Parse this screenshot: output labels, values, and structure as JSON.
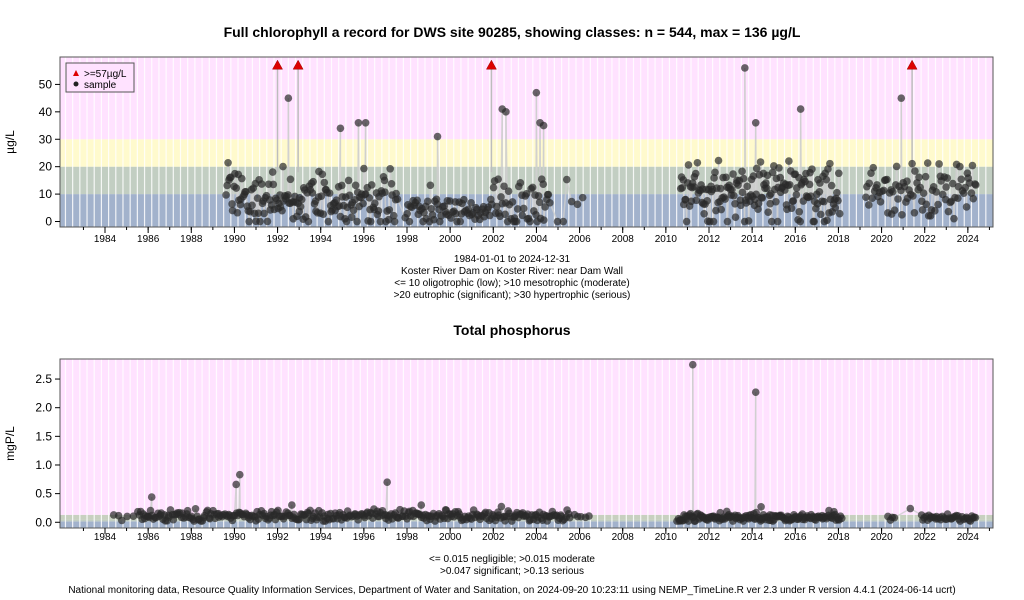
{
  "charts": [
    {
      "type": "scatter",
      "title": "Full chlorophyll a record for DWS site 90285, showing classes: n = 544, max = 136 µg/L",
      "ylabel": "µg/L",
      "xlim": [
        "1982-06-01",
        "2025-09-01"
      ],
      "ylim": [
        -2,
        60
      ],
      "x_ticks": [
        "1984",
        "1986",
        "1988",
        "1990",
        "1992",
        "1994",
        "1996",
        "1998",
        "2000",
        "2002",
        "2004",
        "2006",
        "2008",
        "2010",
        "2012",
        "2014",
        "2016",
        "2018",
        "2020",
        "2022",
        "2024"
      ],
      "y_ticks": [
        0,
        10,
        20,
        30,
        40,
        50
      ],
      "bands": [
        {
          "from": -2,
          "to": 10,
          "color": "#a2b2cc"
        },
        {
          "from": 10,
          "to": 20,
          "color": "#c2cec2"
        },
        {
          "from": 20,
          "to": 30,
          "color": "#fffacd"
        },
        {
          "from": 30,
          "to": 60,
          "color": "#ffe2ff"
        }
      ],
      "legend": {
        "placement": "top-left",
        "entries": [
          {
            "label": ">=57µg/L",
            "marker": "triangle",
            "color": "#dd0000"
          },
          {
            "label": "sample",
            "marker": "circle",
            "color": "#222222"
          }
        ]
      },
      "caption_lines": [
        "1984-01-01 to 2024-12-31",
        "Koster River Dam on Koster River: near Dam Wall",
        "<= 10 oligotrophic (low); >10 mesotrophic (moderate)",
        ">20 eutrophic (significant); >30 hypertrophic (serious)"
      ],
      "exceedances": [
        {
          "x": "1992-07-01",
          "y": 57
        },
        {
          "x": "1993-06-15",
          "y": 57
        },
        {
          "x": "2002-06-01",
          "y": 57
        },
        {
          "x": "2021-12-01",
          "y": 57
        }
      ],
      "highlights": [
        {
          "x": "1993-01-01",
          "y": 45
        },
        {
          "x": "1995-06-01",
          "y": 34
        },
        {
          "x": "1996-04-01",
          "y": 36
        },
        {
          "x": "1996-08-01",
          "y": 36
        },
        {
          "x": "1999-12-01",
          "y": 31
        },
        {
          "x": "2002-12-01",
          "y": 41
        },
        {
          "x": "2003-02-01",
          "y": 40
        },
        {
          "x": "2004-07-01",
          "y": 47
        },
        {
          "x": "2004-09-01",
          "y": 36
        },
        {
          "x": "2004-11-01",
          "y": 35
        },
        {
          "x": "2014-03-01",
          "y": 56
        },
        {
          "x": "2014-09-01",
          "y": 36
        },
        {
          "x": "2016-10-01",
          "y": 41
        },
        {
          "x": "2021-06-01",
          "y": 45
        }
      ],
      "segments": [
        {
          "from": "1990-02-01",
          "to": "1998-02-01",
          "mean": 8,
          "spread": 5,
          "count": 170,
          "lo": 0,
          "hi": 30
        },
        {
          "from": "1998-06-01",
          "to": "2002-06-01",
          "mean": 4,
          "spread": 3,
          "count": 70,
          "lo": 0,
          "hi": 22
        },
        {
          "from": "2002-06-01",
          "to": "2005-03-01",
          "mean": 6,
          "spread": 5,
          "count": 50,
          "lo": 0,
          "hi": 27
        },
        {
          "from": "2005-06-01",
          "to": "2006-10-01",
          "mean": 6,
          "spread": 7,
          "count": 6,
          "lo": 0,
          "hi": 26
        },
        {
          "from": "2011-03-01",
          "to": "2018-08-01",
          "mean": 10,
          "spread": 6,
          "count": 180,
          "lo": 0,
          "hi": 32
        },
        {
          "from": "2019-10-01",
          "to": "2024-12-01",
          "mean": 11,
          "spread": 5,
          "count": 90,
          "lo": 0,
          "hi": 28
        }
      ]
    },
    {
      "type": "scatter",
      "title": "Total phosphorus",
      "ylabel": "mgP/L",
      "xlim": [
        "1982-06-01",
        "2025-09-01"
      ],
      "ylim": [
        -0.1,
        2.85
      ],
      "x_ticks": [
        "1984",
        "1986",
        "1988",
        "1990",
        "1992",
        "1994",
        "1996",
        "1998",
        "2000",
        "2002",
        "2004",
        "2006",
        "2008",
        "2010",
        "2012",
        "2014",
        "2016",
        "2018",
        "2020",
        "2022",
        "2024"
      ],
      "y_ticks": [
        0.0,
        0.5,
        1.0,
        1.5,
        2.0,
        2.5
      ],
      "bands": [
        {
          "from": -0.1,
          "to": 0.015,
          "color": "#a2b2cc"
        },
        {
          "from": 0.015,
          "to": 0.047,
          "color": "#c2cec2"
        },
        {
          "from": 0.047,
          "to": 0.13,
          "color": "#c8d0c0"
        },
        {
          "from": 0.13,
          "to": 2.85,
          "color": "#ffe2ff"
        }
      ],
      "caption_lines": [
        "<= 0.015 negligible; >0.015 moderate",
        ">0.047 significant; >0.13 serious"
      ],
      "highlights": [
        {
          "x": "1986-09-01",
          "y": 0.44
        },
        {
          "x": "1990-08-01",
          "y": 0.66
        },
        {
          "x": "1990-10-01",
          "y": 0.83
        },
        {
          "x": "1993-03-01",
          "y": 0.3
        },
        {
          "x": "1997-08-01",
          "y": 0.7
        },
        {
          "x": "1999-03-01",
          "y": 0.3
        },
        {
          "x": "2011-10-01",
          "y": 2.75
        },
        {
          "x": "2014-09-01",
          "y": 2.27
        },
        {
          "x": "2014-12-01",
          "y": 0.27
        },
        {
          "x": "2021-11-01",
          "y": 0.24
        }
      ],
      "segments": [
        {
          "from": "1984-10-01",
          "to": "1986-01-01",
          "mean": 0.1,
          "spread": 0.03,
          "count": 5,
          "lo": 0.03,
          "hi": 0.2
        },
        {
          "from": "1986-01-01",
          "to": "2006-02-01",
          "mean": 0.11,
          "spread": 0.05,
          "count": 330,
          "lo": 0.02,
          "hi": 0.3
        },
        {
          "from": "2006-03-01",
          "to": "2007-01-01",
          "mean": 0.08,
          "spread": 0.03,
          "count": 5,
          "lo": 0.02,
          "hi": 0.15
        },
        {
          "from": "2011-01-01",
          "to": "2018-09-01",
          "mean": 0.08,
          "spread": 0.04,
          "count": 160,
          "lo": 0.02,
          "hi": 0.25
        },
        {
          "from": "2020-10-01",
          "to": "2021-03-01",
          "mean": 0.08,
          "spread": 0.02,
          "count": 4,
          "lo": 0.02,
          "hi": 0.15
        },
        {
          "from": "2022-05-01",
          "to": "2024-12-01",
          "mean": 0.07,
          "spread": 0.03,
          "count": 40,
          "lo": 0.02,
          "hi": 0.15
        }
      ]
    }
  ],
  "footer": "National monitoring data, Resource Quality Information Services, Department of Water and Sanitation, on 2024-09-20 10:23:11 using NEMP_TimeLine.R ver 2.3 under R version 4.4.1 (2024-06-14 ucrt)"
}
